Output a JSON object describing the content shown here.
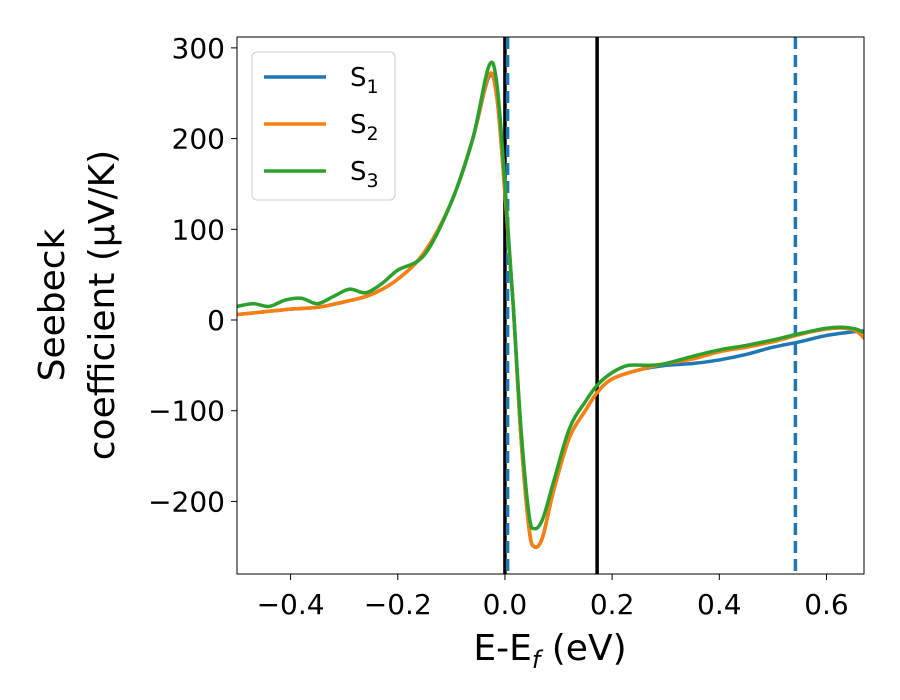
{
  "chart_data": {
    "type": "line",
    "xlabel_main": "E-E",
    "xlabel_sub": "f",
    "xlabel_unit": " (eV)",
    "ylabel_line1": "Seebeck",
    "ylabel_line2": "coefficient  (μV/K)",
    "xlim": [
      -0.5,
      0.67
    ],
    "ylim": [
      -280,
      312
    ],
    "xticks": [
      {
        "value": -0.4,
        "label": "−0.4"
      },
      {
        "value": -0.2,
        "label": "−0.2"
      },
      {
        "value": 0.0,
        "label": "0.0"
      },
      {
        "value": 0.2,
        "label": "0.2"
      },
      {
        "value": 0.4,
        "label": "0.4"
      },
      {
        "value": 0.6,
        "label": "0.6"
      }
    ],
    "yticks": [
      {
        "value": 300,
        "label": "300"
      },
      {
        "value": 200,
        "label": "200"
      },
      {
        "value": 100,
        "label": "100"
      },
      {
        "value": 0,
        "label": "0"
      },
      {
        "value": -100,
        "label": "−100"
      },
      {
        "value": -200,
        "label": "−200"
      }
    ],
    "legend_position": "top-left",
    "grid": false,
    "vlines": [
      {
        "x": 0.0,
        "style": "solid",
        "color": "#000000"
      },
      {
        "x": 0.005,
        "style": "dashed",
        "color": "#1f77b4"
      },
      {
        "x": 0.172,
        "style": "solid",
        "color": "#000000"
      },
      {
        "x": 0.542,
        "style": "dashed",
        "color": "#1f77b4"
      }
    ],
    "series": [
      {
        "name": "S",
        "sub": "1",
        "color": "#1f77b4",
        "points": [
          [
            -0.5,
            6
          ],
          [
            -0.45,
            9
          ],
          [
            -0.4,
            12
          ],
          [
            -0.35,
            14
          ],
          [
            -0.3,
            20
          ],
          [
            -0.25,
            28
          ],
          [
            -0.2,
            45
          ],
          [
            -0.15,
            75
          ],
          [
            -0.1,
            130
          ],
          [
            -0.06,
            200
          ],
          [
            -0.03,
            268
          ],
          [
            -0.015,
            245
          ],
          [
            0.0,
            140
          ],
          [
            0.015,
            20
          ],
          [
            0.03,
            -130
          ],
          [
            0.045,
            -230
          ],
          [
            0.055,
            -250
          ],
          [
            0.07,
            -240
          ],
          [
            0.09,
            -190
          ],
          [
            0.12,
            -130
          ],
          [
            0.15,
            -100
          ],
          [
            0.172,
            -80
          ],
          [
            0.2,
            -65
          ],
          [
            0.25,
            -55
          ],
          [
            0.3,
            -50
          ],
          [
            0.35,
            -48
          ],
          [
            0.4,
            -44
          ],
          [
            0.45,
            -38
          ],
          [
            0.5,
            -30
          ],
          [
            0.55,
            -24
          ],
          [
            0.6,
            -17
          ],
          [
            0.65,
            -13
          ],
          [
            0.67,
            -12
          ]
        ]
      },
      {
        "name": "S",
        "sub": "2",
        "color": "#ff7f0e",
        "points": [
          [
            -0.5,
            6
          ],
          [
            -0.45,
            9
          ],
          [
            -0.4,
            12
          ],
          [
            -0.35,
            14
          ],
          [
            -0.3,
            20
          ],
          [
            -0.25,
            28
          ],
          [
            -0.2,
            45
          ],
          [
            -0.15,
            75
          ],
          [
            -0.1,
            130
          ],
          [
            -0.06,
            200
          ],
          [
            -0.03,
            270
          ],
          [
            -0.015,
            245
          ],
          [
            0.0,
            140
          ],
          [
            0.015,
            20
          ],
          [
            0.03,
            -130
          ],
          [
            0.045,
            -230
          ],
          [
            0.055,
            -250
          ],
          [
            0.07,
            -240
          ],
          [
            0.09,
            -190
          ],
          [
            0.12,
            -130
          ],
          [
            0.15,
            -100
          ],
          [
            0.172,
            -80
          ],
          [
            0.2,
            -65
          ],
          [
            0.25,
            -55
          ],
          [
            0.3,
            -48
          ],
          [
            0.35,
            -43
          ],
          [
            0.4,
            -35
          ],
          [
            0.45,
            -30
          ],
          [
            0.5,
            -24
          ],
          [
            0.55,
            -16
          ],
          [
            0.6,
            -10
          ],
          [
            0.63,
            -9
          ],
          [
            0.655,
            -12
          ],
          [
            0.67,
            -20
          ]
        ]
      },
      {
        "name": "S",
        "sub": "3",
        "color": "#2ca02c",
        "points": [
          [
            -0.5,
            15
          ],
          [
            -0.47,
            18
          ],
          [
            -0.44,
            15
          ],
          [
            -0.41,
            22
          ],
          [
            -0.38,
            24
          ],
          [
            -0.35,
            18
          ],
          [
            -0.32,
            26
          ],
          [
            -0.29,
            34
          ],
          [
            -0.26,
            30
          ],
          [
            -0.23,
            40
          ],
          [
            -0.2,
            55
          ],
          [
            -0.15,
            72
          ],
          [
            -0.1,
            130
          ],
          [
            -0.06,
            200
          ],
          [
            -0.03,
            280
          ],
          [
            -0.015,
            260
          ],
          [
            0.0,
            150
          ],
          [
            0.015,
            20
          ],
          [
            0.03,
            -120
          ],
          [
            0.045,
            -215
          ],
          [
            0.055,
            -230
          ],
          [
            0.07,
            -220
          ],
          [
            0.09,
            -180
          ],
          [
            0.12,
            -120
          ],
          [
            0.15,
            -90
          ],
          [
            0.172,
            -72
          ],
          [
            0.2,
            -58
          ],
          [
            0.23,
            -50
          ],
          [
            0.27,
            -50
          ],
          [
            0.3,
            -48
          ],
          [
            0.35,
            -40
          ],
          [
            0.4,
            -33
          ],
          [
            0.45,
            -28
          ],
          [
            0.5,
            -22
          ],
          [
            0.55,
            -15
          ],
          [
            0.6,
            -9
          ],
          [
            0.63,
            -8
          ],
          [
            0.655,
            -10
          ],
          [
            0.67,
            -14
          ]
        ]
      }
    ]
  }
}
